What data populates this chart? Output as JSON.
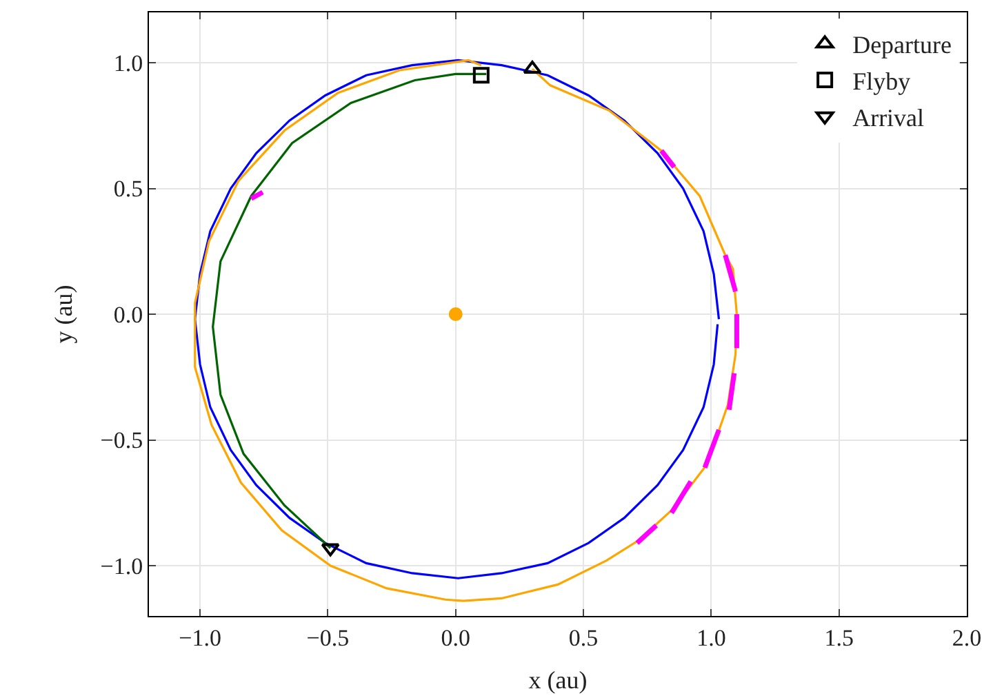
{
  "chart_data": {
    "type": "line",
    "xlabel": "x (au)",
    "ylabel": "y (au)",
    "xlim": [
      -1.2,
      2.0
    ],
    "ylim": [
      -1.2,
      1.2
    ],
    "xticks": [
      {
        "value": -1.0,
        "label": "−1.0"
      },
      {
        "value": -0.5,
        "label": "−0.5"
      },
      {
        "value": 0.0,
        "label": "0.0"
      },
      {
        "value": 0.5,
        "label": "0.5"
      },
      {
        "value": 1.0,
        "label": "1.0"
      },
      {
        "value": 1.5,
        "label": "1.5"
      },
      {
        "value": 2.0,
        "label": "2.0"
      }
    ],
    "yticks": [
      {
        "value": -1.0,
        "label": "−1.0"
      },
      {
        "value": -0.5,
        "label": "−0.5"
      },
      {
        "value": 0.0,
        "label": "0.0"
      },
      {
        "value": 0.5,
        "label": "0.5"
      },
      {
        "value": 1.0,
        "label": "1.0"
      }
    ],
    "grid": true,
    "legend": "top right",
    "line_style": "solid",
    "series": [
      {
        "color": "#0000ff",
        "x": [
          1.03,
          1.01,
          0.97,
          0.89,
          0.79,
          0.66,
          0.52,
          0.36,
          0.18,
          0.01,
          -0.17,
          -0.35,
          -0.51,
          -0.65,
          -0.78,
          -0.88,
          -0.96,
          -1.0,
          -1.02,
          -1.0,
          -0.96,
          -0.88,
          -0.78,
          -0.65,
          -0.51,
          -0.35,
          -0.17,
          0.01,
          0.18,
          0.36,
          0.52,
          0.66,
          0.79,
          0.89,
          0.97,
          1.01,
          1.025
        ],
        "values": [
          -0.02,
          0.16,
          0.33,
          0.5,
          0.64,
          0.77,
          0.87,
          0.95,
          0.99,
          1.01,
          0.99,
          0.95,
          0.87,
          0.77,
          0.64,
          0.5,
          0.33,
          0.16,
          -0.02,
          -0.2,
          -0.37,
          -0.54,
          -0.68,
          -0.81,
          -0.91,
          -0.99,
          -1.03,
          -1.05,
          -1.03,
          -0.99,
          -0.91,
          -0.81,
          -0.68,
          -0.54,
          -0.37,
          -0.2,
          -0.04
        ]
      },
      {
        "color": "#ffa500",
        "x": [
          0.3,
          0.37,
          0.6,
          0.805,
          0.955,
          1.055,
          1.085,
          1.1,
          1.095,
          1.065,
          0.985,
          0.85,
          0.715,
          0.59,
          0.4,
          0.18,
          0.03,
          -0.04,
          -0.27,
          -0.49,
          -0.68,
          -0.84,
          -0.955,
          -1.02,
          -1.02,
          -0.965,
          -0.85,
          -0.67,
          -0.46,
          -0.22,
          0.05,
          0.1
        ],
        "values": [
          0.975,
          0.91,
          0.81,
          0.65,
          0.47,
          0.235,
          0.18,
          0.0,
          -0.16,
          -0.36,
          -0.595,
          -0.775,
          -0.9,
          -0.98,
          -1.075,
          -1.13,
          -1.14,
          -1.135,
          -1.09,
          -1.0,
          -0.86,
          -0.67,
          -0.44,
          -0.21,
          0.045,
          0.29,
          0.53,
          0.73,
          0.88,
          0.97,
          1.01,
          0.99
        ]
      },
      {
        "color": "#006400",
        "x": [
          0.12,
          0.0,
          -0.16,
          -0.41,
          -0.64,
          -0.8,
          -0.92,
          -0.95,
          -0.92,
          -0.83,
          -0.67,
          -0.49
        ],
        "values": [
          0.955,
          0.955,
          0.93,
          0.84,
          0.68,
          0.47,
          0.21,
          -0.05,
          -0.32,
          -0.555,
          -0.76,
          -0.93
        ]
      },
      {
        "color": "#ff00ff",
        "x": [
          1.1,
          1.1,
          null,
          1.09,
          1.07,
          null,
          1.03,
          0.975,
          null,
          0.92,
          0.845,
          null,
          0.785,
          0.71,
          null,
          1.055,
          1.095,
          null,
          0.805,
          0.855,
          null,
          -0.755,
          -0.8
        ],
        "values": [
          0.0,
          -0.135,
          null,
          -0.235,
          -0.38,
          null,
          -0.46,
          -0.61,
          null,
          -0.665,
          -0.79,
          null,
          -0.84,
          -0.91,
          null,
          0.235,
          0.09,
          null,
          0.65,
          0.585,
          null,
          0.485,
          0.46
        ]
      },
      {
        "type": "scatter",
        "marker": "circle",
        "color": "#ffa500",
        "x": [
          0.0
        ],
        "values": [
          0.0
        ]
      },
      {
        "type": "scatter",
        "marker": "triangle",
        "name": "Departure",
        "color": "#000000",
        "x": [
          0.3
        ],
        "values": [
          0.975
        ]
      },
      {
        "type": "scatter",
        "marker": "square",
        "name": "Flyby",
        "color": "#000000",
        "x": [
          0.1
        ],
        "values": [
          0.95
        ]
      },
      {
        "type": "scatter",
        "marker": "triangle-down",
        "name": "Arrival",
        "color": "#000000",
        "x": [
          -0.49
        ],
        "values": [
          -0.93
        ]
      }
    ]
  }
}
